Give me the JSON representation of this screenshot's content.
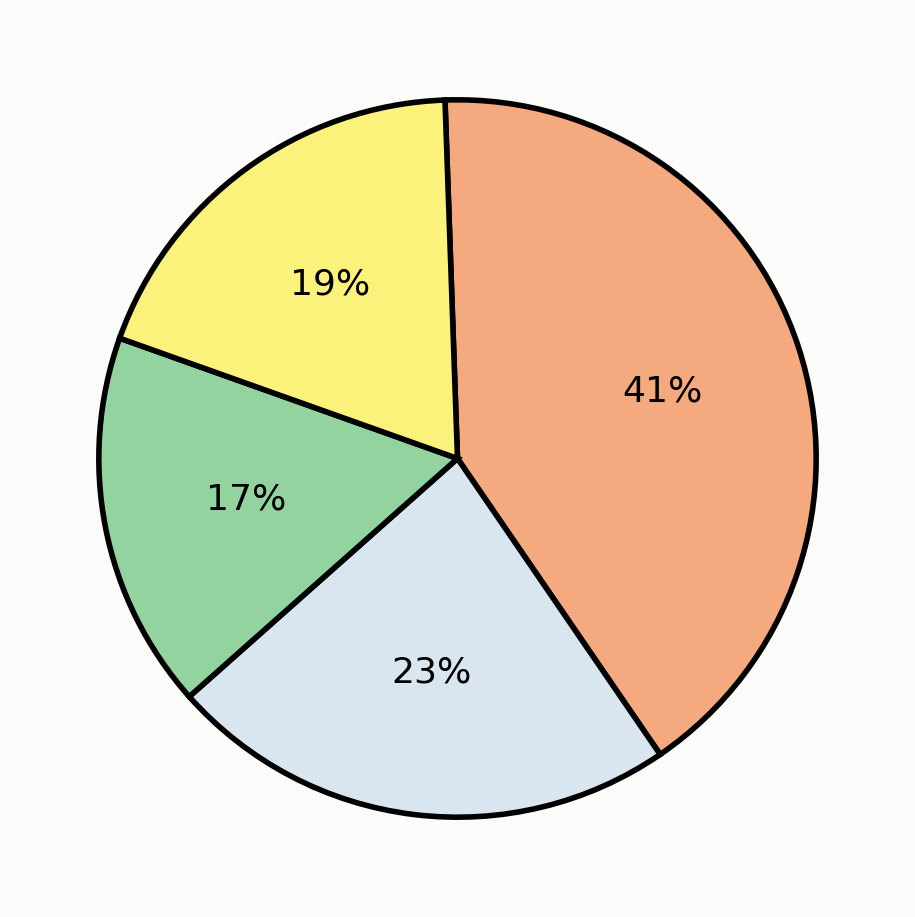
{
  "chart_data": {
    "type": "pie",
    "values": [
      41,
      23,
      17,
      19
    ],
    "value_labels": [
      "41%",
      "23%",
      "17%",
      "19%"
    ],
    "colors": [
      "#f5a97f",
      "#d9e6f0",
      "#92d3a0",
      "#fbf27c"
    ],
    "data_labels": true
  }
}
